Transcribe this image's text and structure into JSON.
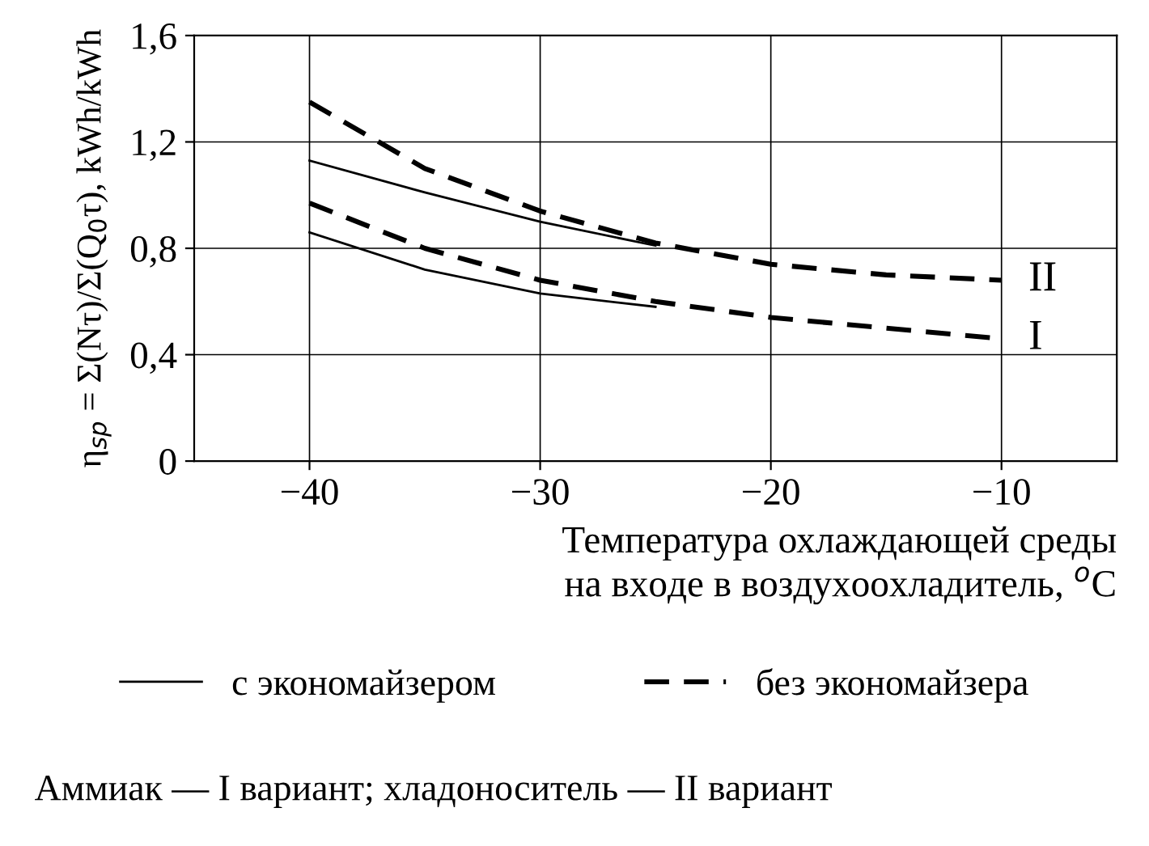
{
  "chart_data": {
    "type": "line",
    "xlabel": "Температура охлаждающей среды\nна входе в воздухоохладитель, $^{o}$C",
    "ylabel": "η$_{sp}$ = Σ(Nτ)/Σ(Q$_{0}$τ), kWh/kWh",
    "xlim": [
      -45,
      -5
    ],
    "xticks": [
      {
        "value": -40,
        "label": "−40"
      },
      {
        "value": -30,
        "label": "−30"
      },
      {
        "value": -20,
        "label": "−20"
      },
      {
        "value": -10,
        "label": "−10"
      }
    ],
    "ylim": [
      0,
      1.6
    ],
    "yticks": [
      0,
      {
        "value": 0.4,
        "label": "0,4"
      },
      {
        "value": 0.8,
        "label": "0,8"
      },
      {
        "value": 1.2,
        "label": "1,2"
      },
      {
        "value": 1.6,
        "label": "1,6"
      }
    ],
    "grid": true,
    "legend": "bottom",
    "marker": "none",
    "series": [
      {
        "name": "с экономайзером",
        "color": "#000000",
        "line_style": "solid",
        "x": [
          -40,
          -35,
          -30,
          -25
        ],
        "values": [
          1.13,
          1.01,
          0.9,
          0.81
        ]
      },
      {
        "name": "без экономайзера",
        "color": "#000000",
        "line_style": "dashed",
        "x": [
          -40,
          -37,
          -35,
          -30,
          -25,
          -20,
          -15,
          -10
        ],
        "values": [
          1.35,
          1.2,
          1.1,
          0.94,
          0.82,
          0.74,
          0.7,
          0.68
        ]
      },
      {
        "color": "#000000",
        "line_style": "dashed",
        "x": [
          -40,
          -35,
          -30,
          -25,
          -20,
          -15,
          -10
        ],
        "values": [
          0.97,
          0.8,
          0.68,
          0.6,
          0.54,
          0.5,
          0.46
        ]
      },
      {
        "color": "#000000",
        "line_style": "solid",
        "x": [
          -40,
          -35,
          -30,
          -25
        ],
        "values": [
          0.86,
          0.72,
          0.63,
          0.58
        ]
      }
    ],
    "annotations": [
      {
        "text": "II",
        "x": -10,
        "y": 0.68
      },
      {
        "text": "I",
        "x": -10,
        "y": 0.46
      },
      "Аммиак — I вариант; хладоноситель — II вариант"
    ]
  }
}
